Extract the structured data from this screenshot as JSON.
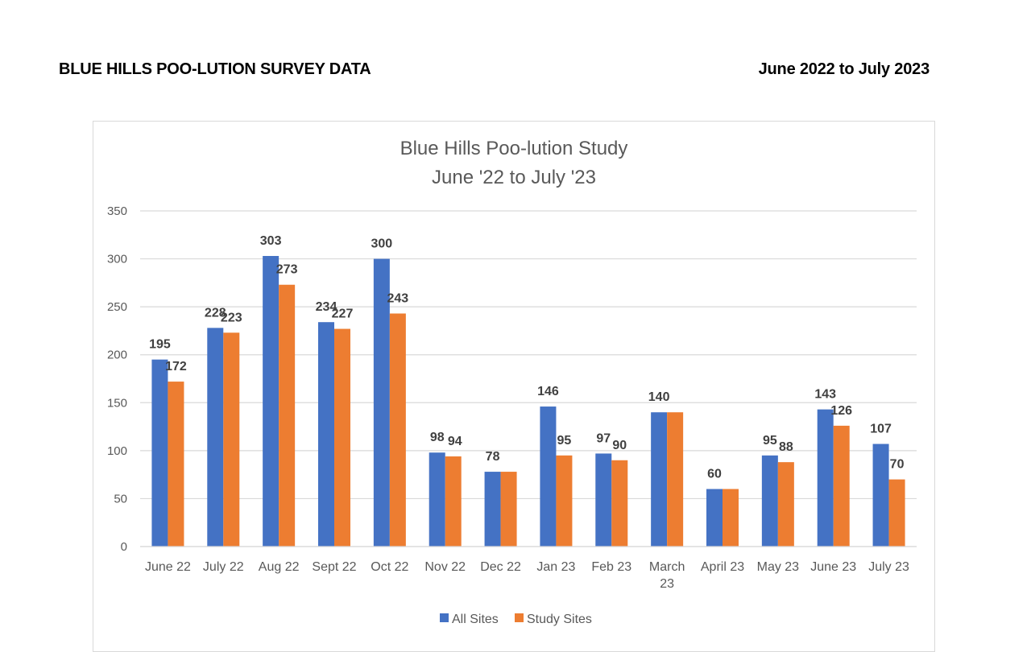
{
  "page": {
    "heading": "BLUE HILLS POO-LUTION SURVEY DATA",
    "date_range": "June 2022 to July 2023"
  },
  "chart_data": {
    "type": "bar",
    "title": [
      "Blue Hills Poo-lution Study",
      "June '22 to July '23"
    ],
    "categories": [
      "June 22",
      "July 22",
      "Aug 22",
      "Sept 22",
      "Oct 22",
      "Nov 22",
      "Dec 22",
      "Jan 23",
      "Feb 23",
      "March 23",
      "April 23",
      "May 23",
      "June 23",
      "July 23"
    ],
    "category_lines": [
      [
        "June 22"
      ],
      [
        "July 22"
      ],
      [
        "Aug 22"
      ],
      [
        "Sept 22"
      ],
      [
        "Oct 22"
      ],
      [
        "Nov 22"
      ],
      [
        "Dec 22"
      ],
      [
        "Jan 23"
      ],
      [
        "Feb 23"
      ],
      [
        "March",
        "23"
      ],
      [
        "April 23"
      ],
      [
        "May 23"
      ],
      [
        "June 23"
      ],
      [
        "July 23"
      ]
    ],
    "series": [
      {
        "name": "All Sites",
        "color": "#4472c4",
        "values": [
          195,
          228,
          303,
          234,
          300,
          98,
          78,
          146,
          97,
          140,
          60,
          95,
          143,
          107
        ]
      },
      {
        "name": "Study Sites",
        "color": "#ed7d31",
        "values": [
          172,
          223,
          273,
          227,
          243,
          94,
          78,
          95,
          90,
          140,
          60,
          88,
          126,
          70
        ]
      }
    ],
    "data_labels": {
      "All Sites": [
        "195",
        "228",
        "303",
        "234",
        "300",
        "98",
        "78",
        "146",
        "97",
        "140",
        "60",
        "95",
        "143",
        "107"
      ],
      "Study Sites": [
        "172",
        "223",
        "273",
        "227",
        "243",
        "94",
        null,
        "95",
        "90",
        null,
        null,
        "88",
        "126",
        "70"
      ]
    },
    "ylim": [
      0,
      350
    ],
    "yticks": [
      0,
      50,
      100,
      150,
      200,
      250,
      300,
      350
    ],
    "grid": true,
    "legend_position": "bottom",
    "gridline_color": "#d9d9d9"
  }
}
